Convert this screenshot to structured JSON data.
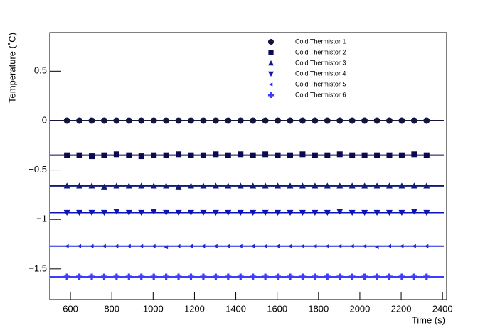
{
  "chart_data": {
    "type": "scatter",
    "xlabel": "Time (s)",
    "ylabel": "Temperature (˚C)",
    "x": [
      583,
      643,
      703,
      763,
      823,
      883,
      943,
      1003,
      1063,
      1123,
      1183,
      1243,
      1303,
      1363,
      1423,
      1483,
      1543,
      1603,
      1663,
      1723,
      1783,
      1843,
      1903,
      1963,
      2023,
      2083,
      2143,
      2203,
      2263,
      2323
    ],
    "xlim": [
      500,
      2420
    ],
    "xticks": [
      600,
      800,
      1000,
      1200,
      1400,
      1600,
      1800,
      2000,
      2200,
      2400
    ],
    "ylim": [
      -1.81,
      0.89
    ],
    "yticks": [
      {
        "value": -1.5,
        "label": "−1.5"
      },
      {
        "value": -1,
        "label": "−1"
      },
      {
        "value": -0.5,
        "label": "−0.5"
      },
      0,
      0.5
    ],
    "series": [
      {
        "name": "Cold Thermistor 1",
        "color": "#14143c",
        "marker": "circle",
        "fit": 0,
        "values": [
          0,
          0,
          0,
          0,
          0,
          0,
          0,
          0,
          0,
          0,
          0,
          0,
          0,
          0,
          0,
          0,
          0,
          0,
          0,
          0,
          0,
          0,
          0,
          0,
          0,
          0,
          0,
          0,
          0,
          0
        ]
      },
      {
        "name": "Cold Thermistor 2",
        "color": "#0a0a50",
        "marker": "square",
        "fit": -0.35,
        "values": [
          -0.35,
          -0.35,
          -0.36,
          -0.35,
          -0.34,
          -0.35,
          -0.36,
          -0.35,
          -0.35,
          -0.34,
          -0.35,
          -0.35,
          -0.34,
          -0.35,
          -0.34,
          -0.35,
          -0.34,
          -0.35,
          -0.35,
          -0.34,
          -0.35,
          -0.35,
          -0.34,
          -0.35,
          -0.35,
          -0.35,
          -0.35,
          -0.35,
          -0.34,
          -0.35
        ]
      },
      {
        "name": "Cold Thermistor 3",
        "color": "#101a78",
        "marker": "triangle-up",
        "fit": -0.66,
        "values": [
          -0.66,
          -0.66,
          -0.66,
          -0.67,
          -0.66,
          -0.66,
          -0.66,
          -0.66,
          -0.66,
          -0.67,
          -0.66,
          -0.66,
          -0.66,
          -0.66,
          -0.66,
          -0.66,
          -0.66,
          -0.66,
          -0.66,
          -0.66,
          -0.66,
          -0.66,
          -0.66,
          -0.66,
          -0.66,
          -0.66,
          -0.66,
          -0.66,
          -0.66,
          -0.66
        ]
      },
      {
        "name": "Cold Thermistor 4",
        "color": "#0c14b4",
        "marker": "triangle-down",
        "fit": -0.93,
        "values": [
          -0.93,
          -0.93,
          -0.93,
          -0.93,
          -0.92,
          -0.93,
          -0.93,
          -0.92,
          -0.93,
          -0.93,
          -0.93,
          -0.93,
          -0.93,
          -0.93,
          -0.93,
          -0.93,
          -0.93,
          -0.93,
          -0.93,
          -0.93,
          -0.93,
          -0.93,
          -0.92,
          -0.93,
          -0.93,
          -0.93,
          -0.93,
          -0.93,
          -0.92,
          -0.93
        ]
      },
      {
        "name": "Cold Thermistor 5",
        "color": "#1e28dc",
        "marker": "triangle-left",
        "fit": -1.27,
        "values": [
          -1.27,
          -1.27,
          -1.27,
          -1.27,
          -1.27,
          -1.27,
          -1.27,
          -1.27,
          -1.28,
          -1.27,
          -1.27,
          -1.27,
          -1.27,
          -1.27,
          -1.27,
          -1.27,
          -1.27,
          -1.27,
          -1.27,
          -1.27,
          -1.27,
          -1.27,
          -1.27,
          -1.27,
          -1.27,
          -1.28,
          -1.27,
          -1.27,
          -1.27,
          -1.27
        ]
      },
      {
        "name": "Cold Thermistor 6",
        "color": "#3c3cff",
        "marker": "plus",
        "fit": -1.58,
        "values": [
          -1.58,
          -1.58,
          -1.58,
          -1.58,
          -1.58,
          -1.58,
          -1.58,
          -1.58,
          -1.58,
          -1.58,
          -1.58,
          -1.58,
          -1.58,
          -1.58,
          -1.58,
          -1.58,
          -1.58,
          -1.58,
          -1.58,
          -1.58,
          -1.58,
          -1.58,
          -1.58,
          -1.58,
          -1.58,
          -1.58,
          -1.58,
          -1.58,
          -1.58,
          -1.58
        ]
      }
    ]
  }
}
